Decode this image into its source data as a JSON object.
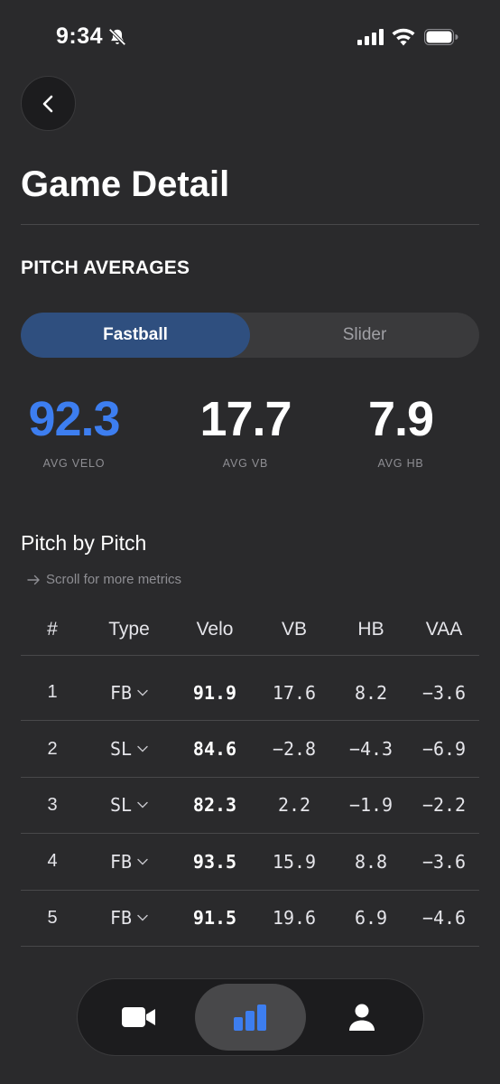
{
  "status_bar": {
    "time": "9:34",
    "icons": [
      "bell-slash-icon",
      "cellular-signal-icon",
      "wifi-icon",
      "battery-icon"
    ]
  },
  "header": {
    "back_icon": "chevron-left-icon",
    "title": "Game Detail"
  },
  "pitch_averages": {
    "heading": "PITCH AVERAGES",
    "tabs": [
      {
        "label": "Fastball",
        "selected": true
      },
      {
        "label": "Slider",
        "selected": false
      }
    ],
    "stats": [
      {
        "value": "92.3",
        "label": "AVG VELO"
      },
      {
        "value": "17.7",
        "label": "AVG VB"
      },
      {
        "value": "7.9",
        "label": "AVG HB"
      }
    ]
  },
  "pitch_by_pitch": {
    "heading": "Pitch by Pitch",
    "scroll_hint": "Scroll for more metrics",
    "columns": [
      "#",
      "Type",
      "Velo",
      "VB",
      "HB",
      "VAA"
    ],
    "rows": [
      {
        "num": "1",
        "type": "FB",
        "velo": "91.9",
        "vb": "17.6",
        "hb": "8.2",
        "vaa": "−3.6"
      },
      {
        "num": "2",
        "type": "SL",
        "velo": "84.6",
        "vb": "−2.8",
        "hb": "−4.3",
        "vaa": "−6.9"
      },
      {
        "num": "3",
        "type": "SL",
        "velo": "82.3",
        "vb": "2.2",
        "hb": "−1.9",
        "vaa": "−2.2"
      },
      {
        "num": "4",
        "type": "FB",
        "velo": "93.5",
        "vb": "15.9",
        "hb": "8.8",
        "vaa": "−3.6"
      },
      {
        "num": "5",
        "type": "FB",
        "velo": "91.5",
        "vb": "19.6",
        "hb": "6.9",
        "vaa": "−4.6"
      }
    ]
  },
  "bottom_nav": {
    "items": [
      {
        "icon": "video-camera-icon",
        "active": false
      },
      {
        "icon": "bar-chart-icon",
        "active": true
      },
      {
        "icon": "person-icon",
        "active": false
      }
    ]
  },
  "colors": {
    "background": "#2a2a2c",
    "accent_blue": "#3d7ef0",
    "segment_active": "#2f4f7f"
  }
}
